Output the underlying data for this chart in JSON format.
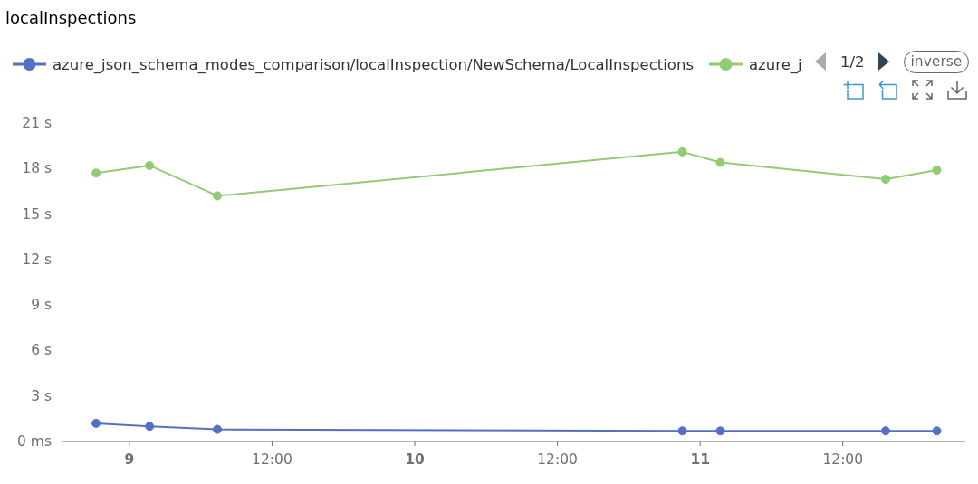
{
  "chart_data": {
    "type": "line",
    "title": "localInspections",
    "x": [
      "--01-08T21:12",
      "--01-09T01:42",
      "--01-09T07:24",
      "--01-10T22:30",
      "--01-11T01:42",
      "--01-11T15:36",
      "--01-11T19:54"
    ],
    "series": [
      {
        "name": "azure_json_schema_modes_comparison/localInspection/NewSchema/LocalInspections",
        "color": "#5470c6",
        "values": [
          1.2,
          1.0,
          0.8,
          0.7,
          0.7,
          0.7,
          0.7
        ]
      },
      {
        "name": "azure_j",
        "color": "#91cc75",
        "values": [
          17.7,
          18.2,
          16.2,
          19.1,
          18.4,
          17.3,
          17.9
        ]
      }
    ],
    "xlim": [
      "--01-08T18:18",
      "--01-11T22:18"
    ],
    "xticks": [
      {
        "value": "--01-09",
        "label": "9"
      },
      {
        "value": "--01-09T12:00",
        "label": "12:00"
      },
      {
        "value": "--01-10",
        "label": "10"
      },
      {
        "value": "--01-10T12:00",
        "label": "12:00"
      },
      {
        "value": "--01-11",
        "label": "11"
      },
      {
        "value": "--01-11T12:00",
        "label": "12:00"
      }
    ],
    "ylim": [
      0,
      21
    ],
    "yticks": [
      {
        "value": 0,
        "label": "0 ms"
      },
      {
        "value": 3,
        "label": "3 s"
      },
      {
        "value": 6,
        "label": "6 s"
      },
      {
        "value": 9,
        "label": "9 s"
      },
      {
        "value": 12,
        "label": "12 s"
      },
      {
        "value": 15,
        "label": "15 s"
      },
      {
        "value": 18,
        "label": "18 s"
      },
      {
        "value": 21,
        "label": "21 s"
      }
    ],
    "legend": "top left",
    "marker": "circle",
    "line_style": "solid",
    "grid": false,
    "annotations": [
      "1/2",
      "inverse"
    ]
  }
}
